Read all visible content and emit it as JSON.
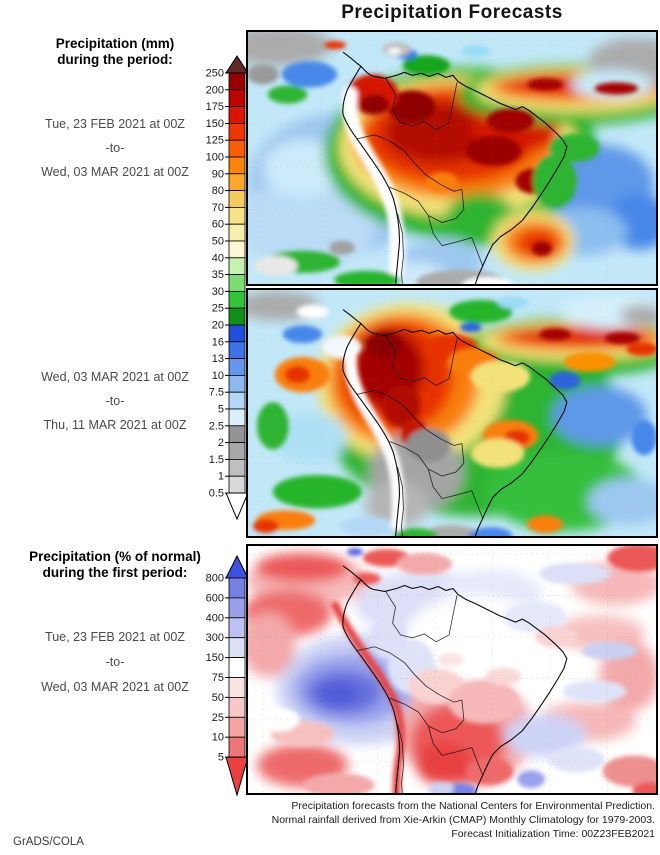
{
  "title": "Precipitation Forecasts",
  "watermark": "GrADS/COLA",
  "mm_section": {
    "header_line1": "Precipitation (mm)",
    "header_line2": "during the period:",
    "scale": {
      "unit": "mm",
      "labels": [
        "250",
        "200",
        "175",
        "150",
        "125",
        "100",
        "90",
        "80",
        "70",
        "60",
        "50",
        "40",
        "35",
        "30",
        "25",
        "20",
        "16",
        "13",
        "10",
        "7.5",
        "5",
        "2.5",
        "2",
        "1.5",
        "1",
        "0.5"
      ],
      "segment_colors": [
        "#960000",
        "#bf0400",
        "#dd1200",
        "#f03500",
        "#f95f00",
        "#fb8307",
        "#fba72e",
        "#f4cb5e",
        "#f6e287",
        "#f9efad",
        "#fbf9d3",
        "#c6f2b0",
        "#7edd72",
        "#31c438",
        "#0f9118",
        "#1e50dc",
        "#3c73e6",
        "#6496eb",
        "#8cb9f0",
        "#b4d7f5",
        "#daf0fb",
        "#949494",
        "#a8a8a8",
        "#bfbfbf",
        "#d9d9d9"
      ],
      "top_arrow_color": "#5d2a26",
      "bottom_arrow_color": "#ffffff"
    },
    "period1": {
      "start": "Tue, 23 FEB 2021 at 00Z",
      "separator": "-to-",
      "end": "Wed, 03 MAR 2021 at 00Z"
    },
    "period2": {
      "start": "Wed, 03 MAR 2021 at 00Z",
      "separator": "-to-",
      "end": "Thu, 11 MAR 2021 at 00Z"
    }
  },
  "pct_section": {
    "header_line1": "Precipitation (% of normal)",
    "header_line2": "during the first period:",
    "scale": {
      "unit": "% of normal",
      "labels": [
        "800",
        "600",
        "400",
        "300",
        "150",
        "75",
        "50",
        "25",
        "10",
        "5"
      ],
      "segment_colors": [
        "#7680e4",
        "#98a1ea",
        "#bcc3f1",
        "#dde1f7",
        "#ffffff",
        "#fbe3e3",
        "#f8c8c8",
        "#f4a4a4",
        "#ef7676"
      ],
      "top_arrow_color": "#3f4fdf",
      "bottom_arrow_color": "#ea4040"
    },
    "period": {
      "start": "Tue, 23 FEB 2021 at 00Z",
      "separator": "-to-",
      "end": "Wed, 03 MAR 2021 at 00Z"
    }
  },
  "footnotes": [
    "Precipitation forecasts from the National Centers for Environmental Prediction.",
    "Normal rainfall derived from Xie-Arkin (CMAP) Monthly Climatology for 1979-2003.",
    "Forecast Initialization Time: 00Z23FEB2021"
  ]
}
